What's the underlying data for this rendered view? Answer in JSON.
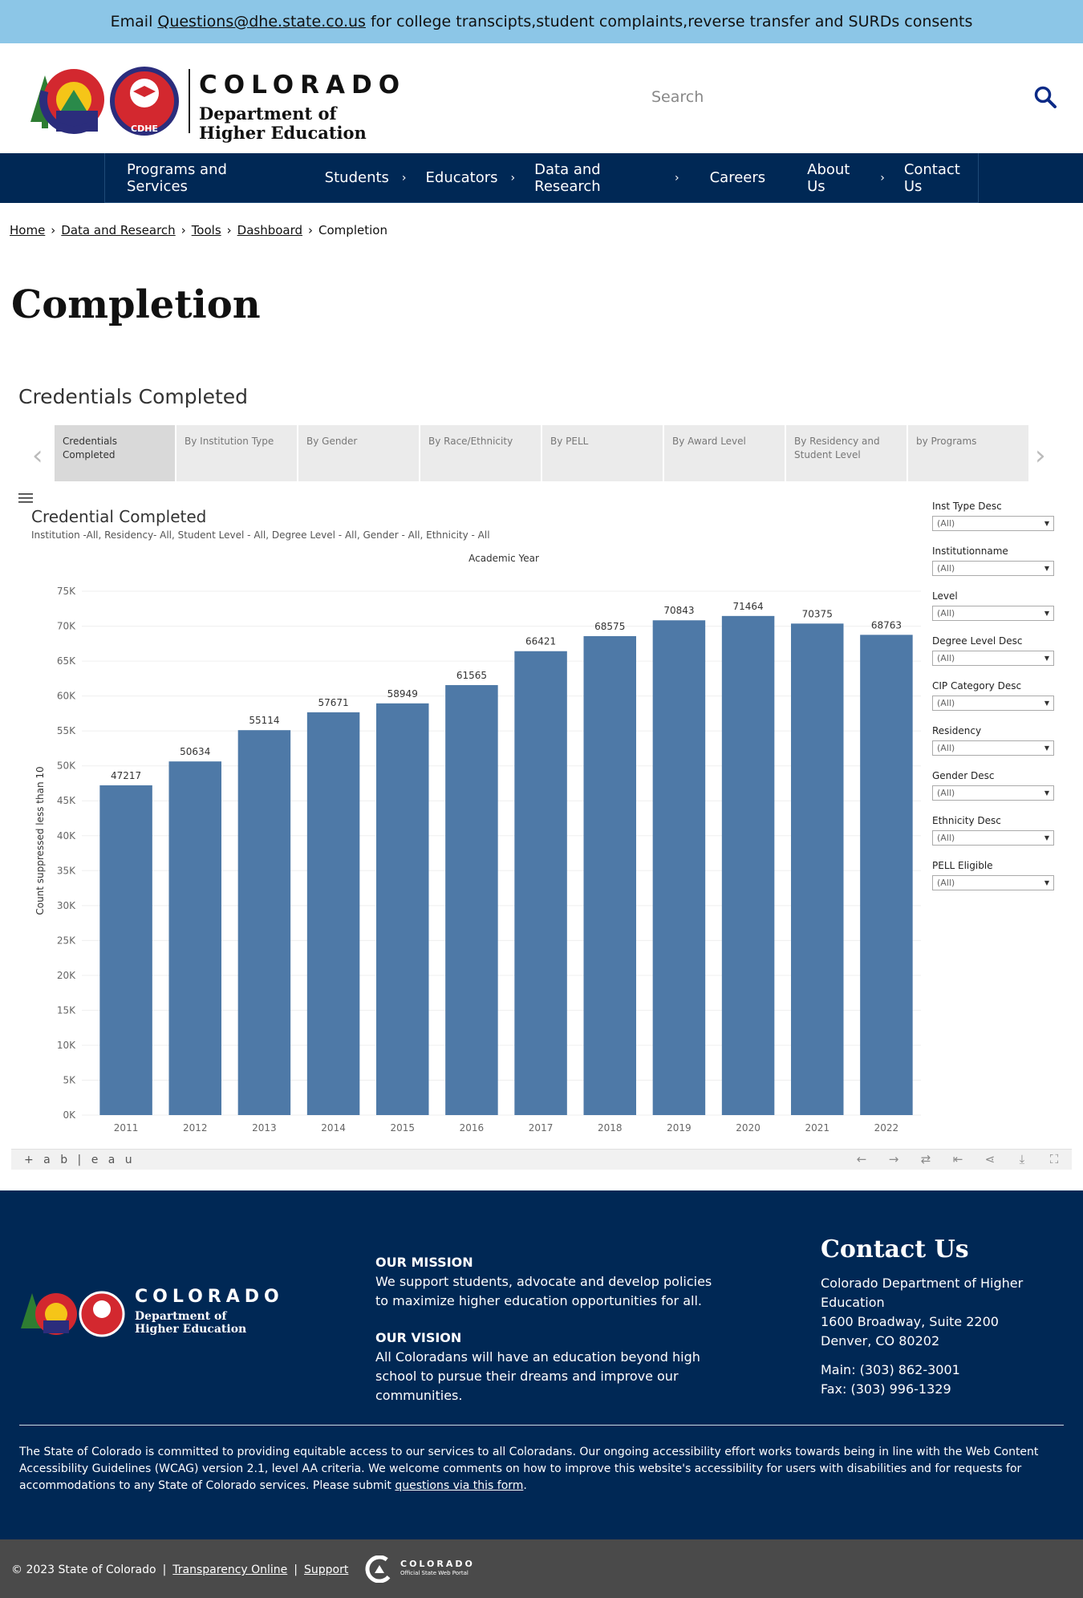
{
  "banner": {
    "prefix": "Email",
    "email": "Questions@dhe.state.co.us",
    "suffix": "for college transcipts,student complaints,reverse transfer and SURDs consents"
  },
  "header": {
    "logo_line1": "COLORADO",
    "logo_line2": "Department of",
    "logo_line3": "Higher Education",
    "logo_badge": "CDHE",
    "search_placeholder": "Search"
  },
  "nav": {
    "items": [
      {
        "label": "Programs and Services",
        "has_submenu": false
      },
      {
        "label": "Students",
        "has_submenu": true
      },
      {
        "label": "Educators",
        "has_submenu": true
      },
      {
        "label": "Data and Research",
        "has_submenu": true
      },
      {
        "label": "Careers",
        "has_submenu": false
      },
      {
        "label": "About Us",
        "has_submenu": true
      },
      {
        "label": "Contact Us",
        "has_submenu": false
      }
    ]
  },
  "breadcrumb": {
    "items": [
      "Home",
      "Data and Research",
      "Tools",
      "Dashboard"
    ],
    "current": "Completion",
    "separator": "›"
  },
  "page_title": "Completion",
  "dashboard": {
    "title": "Credentials Completed",
    "tabs": [
      "Credentials Completed",
      "By Institution Type",
      "By Gender",
      "By Race/Ethnicity",
      "By PELL",
      "By Award Level",
      "By Residency and Student Level",
      "by Programs"
    ],
    "active_tab": 0,
    "viz_title": "Credential Completed",
    "viz_subtitle": "Institution -All, Residency- All, Student Level - All, Degree Level - All, Gender - All, Ethnicity - All",
    "filters": [
      {
        "label": "Inst Type Desc",
        "value": "(All)"
      },
      {
        "label": "Institutionname",
        "value": "(All)"
      },
      {
        "label": "Level",
        "value": "(All)"
      },
      {
        "label": "Degree Level Desc",
        "value": "(All)"
      },
      {
        "label": "CIP Category Desc",
        "value": "(All)"
      },
      {
        "label": "Residency",
        "value": "(All)"
      },
      {
        "label": "Gender Desc",
        "value": "(All)"
      },
      {
        "label": "Ethnicity Desc",
        "value": "(All)"
      },
      {
        "label": "PELL Eligible",
        "value": "(All)"
      }
    ],
    "toolbar_logo": "+ a b | e a u",
    "toolbar_icons": [
      "undo-icon",
      "redo-icon",
      "revert-icon",
      "reset-icon",
      "share-icon",
      "download-icon",
      "fullscreen-icon"
    ],
    "colors": {
      "bar": "#4e79a7",
      "tab_bg": "#ebebeb",
      "tab_active": "#d9d9d9"
    }
  },
  "chart_data": {
    "type": "bar",
    "title": "Academic Year",
    "xlabel": "Academic Year",
    "ylabel": "Count suppressed less than 10",
    "categories": [
      "2011",
      "2012",
      "2013",
      "2014",
      "2015",
      "2016",
      "2017",
      "2018",
      "2019",
      "2020",
      "2021",
      "2022"
    ],
    "values": [
      47217,
      50634,
      55114,
      57671,
      58949,
      61565,
      66421,
      68575,
      70843,
      71464,
      70375,
      68763
    ],
    "yticks": [
      0,
      5000,
      10000,
      15000,
      20000,
      25000,
      30000,
      35000,
      40000,
      45000,
      50000,
      55000,
      60000,
      65000,
      70000,
      75000
    ],
    "ytick_labels": [
      "0K",
      "5K",
      "10K",
      "15K",
      "20K",
      "25K",
      "30K",
      "35K",
      "40K",
      "45K",
      "50K",
      "55K",
      "60K",
      "65K",
      "70K",
      "75K"
    ],
    "ylim": [
      0,
      76500
    ],
    "data_labels": true,
    "grid": true,
    "color": "#4e79a7"
  },
  "footer": {
    "mission_heading": "OUR MISSION",
    "mission_text": "We support students, advocate and develop policies to maximize higher education opportunities for all.",
    "vision_heading": "OUR VISION",
    "vision_text": "All Coloradans will have an education beyond high school to pursue their dreams and improve our communities.",
    "contact_title": "Contact Us",
    "contact_org": "Colorado Department of Higher Education",
    "contact_street": "1600 Broadway, Suite 2200",
    "contact_city": "Denver, CO 80202",
    "contact_main": "Main: (303) 862-3001",
    "contact_fax": "Fax: (303) 996-1329",
    "accessibility_text": "The State of Colorado is committed to providing equitable access to our services to all Coloradans. Our ongoing accessibility effort works towards being in line with the Web Content Accessibility Guidelines (WCAG) version 2.1, level AA criteria. We welcome comments on how to improve this website's accessibility for users with disabilities and for requests for accommodations to any State of Colorado services. Please submit",
    "accessibility_link": "questions via this form",
    "accessibility_end": "."
  },
  "bottom_bar": {
    "copyright": "© 2023 State of Colorado",
    "transparency": "Transparency Online",
    "support": "Support",
    "portal_line1": "COLORADO",
    "portal_line2": "Official State Web Portal"
  }
}
